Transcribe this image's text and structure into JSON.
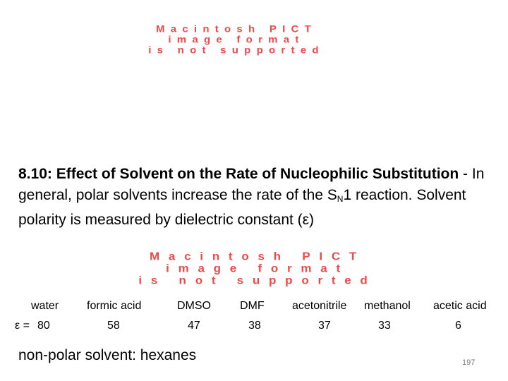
{
  "placeholder_image": {
    "lines": [
      "Macintosh PICT",
      "image format",
      "is not supported"
    ]
  },
  "heading": {
    "bold": "8.10: Effect of Solvent on the Rate of Nucleophilic Substitution",
    "text_1": " - In general, polar solvents increase the rate of the S",
    "subscript": "N",
    "text_2": "1 reaction. Solvent polarity is measured by dielectric constant (ε)"
  },
  "table": {
    "epsilon_label": "ε = ",
    "solvents": [
      "water",
      "formic acid",
      "DMSO",
      "DMF",
      "acetonitrile",
      "methanol",
      "acetic acid"
    ],
    "values": [
      "80",
      "58",
      "47",
      "38",
      "37",
      "33",
      "6"
    ]
  },
  "nonpolar": "non-polar solvent:  hexanes",
  "page_number": "197",
  "colors": {
    "placeholder_text": "#ef4a4a"
  }
}
